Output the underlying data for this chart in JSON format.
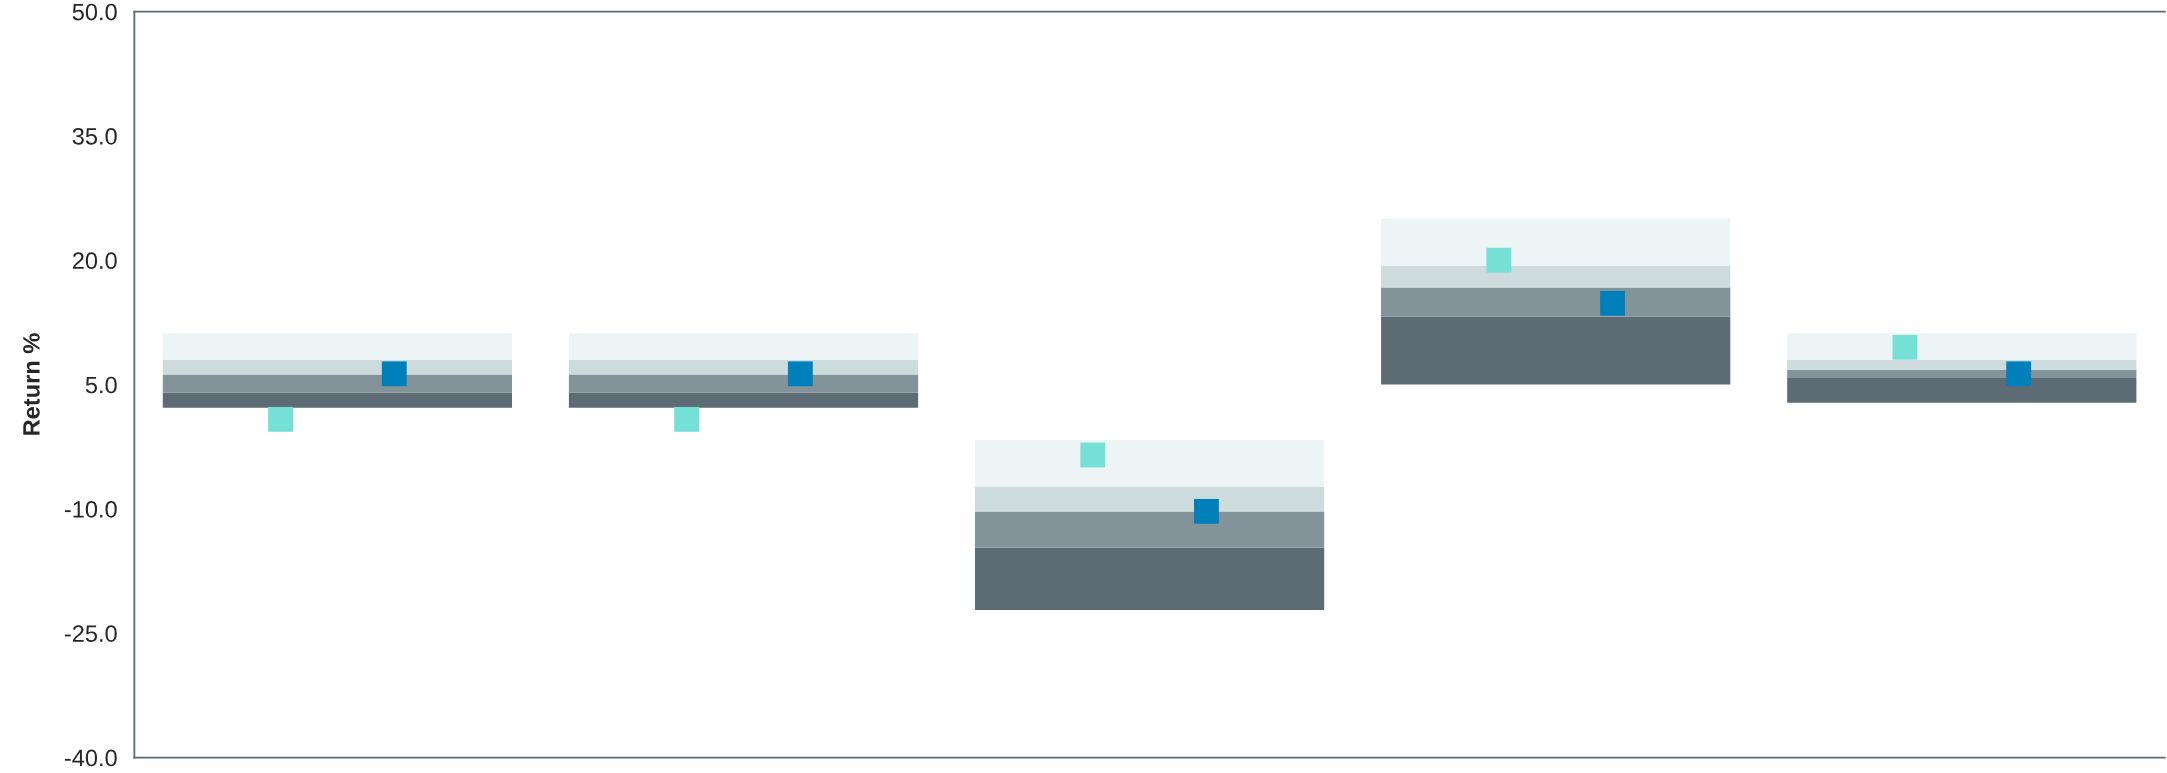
{
  "chart_data": {
    "type": "bar",
    "ylabel": "Return %",
    "categories": [
      null,
      null,
      null,
      null,
      null
    ],
    "series": [
      {
        "color": "#5d6b75",
        "base": [
          2.2,
          2.2,
          -22.2,
          5.0,
          2.8
        ],
        "values": [
          1.8,
          1.8,
          7.5,
          8.2,
          3.0
        ]
      },
      {
        "color": "#83939a",
        "base": [
          4.0,
          4.0,
          -14.7,
          13.2,
          5.8
        ],
        "values": [
          2.2,
          2.2,
          4.4,
          3.5,
          1.0
        ]
      },
      {
        "color": "#cddbdc",
        "base": [
          6.2,
          6.2,
          -10.3,
          16.7,
          6.8
        ],
        "values": [
          1.8,
          1.8,
          3.0,
          2.6,
          1.2
        ]
      },
      {
        "color": "#edf4f6",
        "base": [
          8.0,
          8.0,
          -7.3,
          19.3,
          8.0
        ],
        "values": [
          3.2,
          3.2,
          5.6,
          5.7,
          3.2
        ]
      },
      {
        "type": "scatter",
        "marker": "square",
        "color": "#74e0d6",
        "values": [
          0.8,
          0.8,
          -3.5,
          20.0,
          9.5
        ]
      },
      {
        "type": "scatter",
        "marker": "square",
        "color": "#0080bb",
        "values": [
          6.3,
          6.3,
          -10.3,
          14.8,
          6.3
        ]
      }
    ],
    "ylim": [
      -40,
      50
    ],
    "yticks": [
      {
        "value": -40,
        "label": "-40.0"
      },
      {
        "value": -25,
        "label": "-25.0"
      },
      {
        "value": -10,
        "label": "-10.0"
      },
      {
        "value": 5,
        "label": "5.0"
      },
      {
        "value": 20,
        "label": "20.0"
      },
      {
        "value": 35,
        "label": "35.0"
      },
      {
        "value": 50,
        "label": "50.0"
      }
    ],
    "grid": false,
    "legend": false
  }
}
